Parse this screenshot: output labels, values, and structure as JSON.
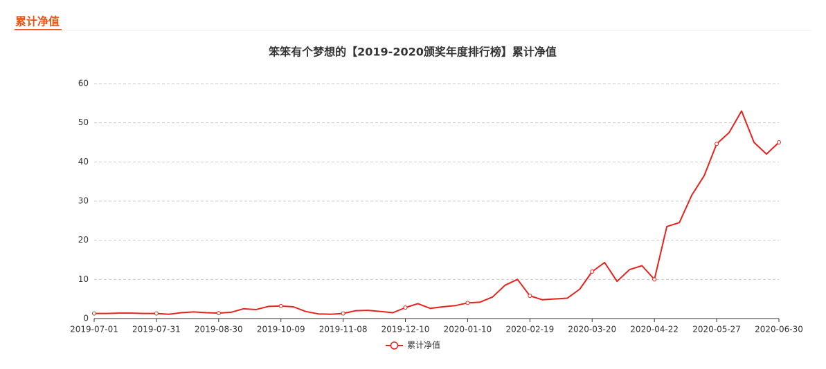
{
  "header": {
    "title": "累计净值"
  },
  "chart_data": {
    "type": "line",
    "title": "笨笨有个梦想的【2019-2020颁奖年度排行榜】累计净值",
    "categories": [
      "2019-07-01",
      null,
      null,
      null,
      null,
      "2019-07-31",
      null,
      null,
      null,
      null,
      "2019-08-30",
      null,
      null,
      null,
      null,
      "2019-10-09",
      null,
      null,
      null,
      null,
      "2019-11-08",
      null,
      null,
      null,
      null,
      "2019-12-10",
      null,
      null,
      null,
      null,
      "2020-01-10",
      null,
      null,
      null,
      null,
      "2020-02-19",
      null,
      null,
      null,
      null,
      "2020-03-20",
      null,
      null,
      null,
      null,
      "2020-04-22",
      null,
      null,
      null,
      null,
      "2020-05-27",
      null,
      null,
      null,
      null,
      "2020-06-30"
    ],
    "series": [
      {
        "name": "累计净值",
        "color": "#e8211a",
        "values": [
          1.3,
          1.3,
          1.4,
          1.4,
          1.3,
          1.3,
          1.1,
          1.5,
          1.7,
          1.5,
          1.4,
          1.6,
          2.5,
          2.3,
          3.1,
          3.2,
          3.0,
          1.8,
          1.2,
          1.1,
          1.3,
          2.0,
          2.1,
          1.8,
          1.5,
          2.8,
          3.8,
          2.6,
          3.0,
          3.3,
          4.0,
          4.2,
          5.5,
          8.5,
          10.0,
          5.8,
          4.8,
          5.0,
          5.2,
          7.5,
          12.0,
          14.3,
          9.5,
          12.5,
          13.5,
          10.0,
          23.5,
          24.5,
          31.5,
          36.5,
          44.6,
          47.5,
          53.0,
          45.0,
          42.0,
          45.0
        ]
      }
    ],
    "ylim": [
      0,
      60
    ],
    "yticks": [
      0,
      10,
      20,
      30,
      40,
      50,
      60
    ],
    "grid": true,
    "legend": "bottom"
  }
}
